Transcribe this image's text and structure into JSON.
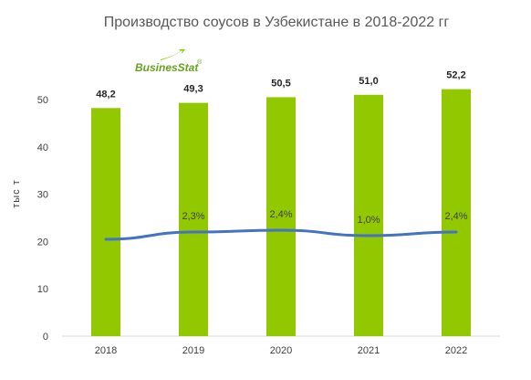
{
  "chart_data": {
    "type": "bar",
    "title": "Производство соусов в Узбекистане в 2018-2022 гг",
    "ylabel": "тыс т",
    "xlabel": "",
    "categories": [
      "2018",
      "2019",
      "2020",
      "2021",
      "2022"
    ],
    "values": [
      48.2,
      49.3,
      50.5,
      51.0,
      52.2
    ],
    "value_labels": [
      "48,2",
      "49,3",
      "50,5",
      "51,0",
      "52,2"
    ],
    "ylim": [
      0,
      50
    ],
    "yticks": [
      "0",
      "10",
      "20",
      "30",
      "40",
      "50"
    ],
    "grid": false,
    "line_series": {
      "type": "line",
      "values": [
        null,
        2.3,
        2.4,
        1.0,
        2.4
      ],
      "labels": [
        "",
        "2,3%",
        "2,4%",
        "1,0%",
        "2,4%"
      ]
    },
    "colors": {
      "bar": "#92c800",
      "line": "#4472c4"
    }
  },
  "logo": {
    "text": "BusinesStat",
    "mark": "®"
  }
}
